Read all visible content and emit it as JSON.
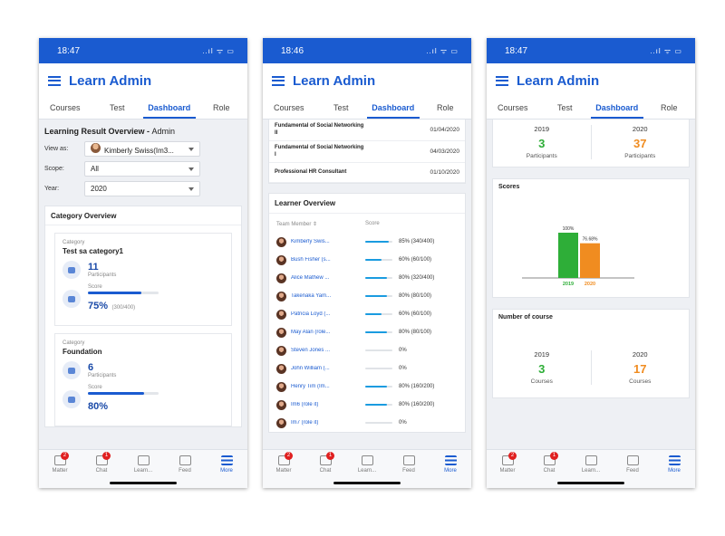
{
  "status": {
    "signal": "..ıl ᯤ ▭"
  },
  "app": {
    "title": "Learn Admin"
  },
  "tabs": [
    "Courses",
    "Test",
    "Dashboard",
    "Role"
  ],
  "nav": [
    {
      "label": "Matter",
      "badge": "2",
      "icon": "matter-icon"
    },
    {
      "label": "Chat",
      "badge": "1",
      "icon": "chat-icon"
    },
    {
      "label": "Learn...",
      "badge": "",
      "icon": "learn-icon"
    },
    {
      "label": "Feed",
      "badge": "",
      "icon": "feed-icon"
    },
    {
      "label": "More",
      "badge": "",
      "icon": "more-icon"
    }
  ],
  "phone1": {
    "time": "18:47",
    "title_bold": "Learning Result Overview - ",
    "title_rest": "Admin",
    "filters": {
      "view_label": "View as:",
      "view_value": "Kimberly Swiss(Im3...",
      "scope_label": "Scope:",
      "scope_value": "All",
      "year_label": "Year:",
      "year_value": "2020"
    },
    "category_overview": "Category Overview",
    "categories": [
      {
        "label": "Category",
        "name": "Test sa category1",
        "participants": "11",
        "participants_label": "Participants",
        "score_label": "Score",
        "score_pct": "75%",
        "score_detail": "(300/400)",
        "score_fraction": 0.75
      },
      {
        "label": "Category",
        "name": "Foundation",
        "participants": "6",
        "participants_label": "Participants",
        "score_label": "Score",
        "score_pct": "80%",
        "score_detail": "",
        "score_fraction": 0.8
      }
    ]
  },
  "phone2": {
    "time": "18:46",
    "courses": [
      {
        "name": "Fundamental of Social Networking II",
        "date": "01/04/2020"
      },
      {
        "name": "Fundamental of Social Networking I",
        "date": "04/03/2020"
      },
      {
        "name": "Professional HR Consultant",
        "date": "01/10/2020"
      }
    ],
    "learner_title": "Learner Overview",
    "col_member": "Team Member ⇕",
    "col_score": "Score",
    "learners": [
      {
        "name": "Kimberly Swis...",
        "score": "85% (340/400)",
        "fraction": 0.85
      },
      {
        "name": "Bush Fisher (s...",
        "score": "60% (60/100)",
        "fraction": 0.6
      },
      {
        "name": "Alice Mathew ...",
        "score": "80% (320/400)",
        "fraction": 0.8
      },
      {
        "name": "Takenaka Yam...",
        "score": "80% (80/100)",
        "fraction": 0.8
      },
      {
        "name": "Patricia Loyd (...",
        "score": "60% (60/100)",
        "fraction": 0.6
      },
      {
        "name": "May Alan (role...",
        "score": "80% (80/100)",
        "fraction": 0.8
      },
      {
        "name": "Steven Jones ...",
        "score": "0%",
        "fraction": 0
      },
      {
        "name": "John William (...",
        "score": "0%",
        "fraction": 0
      },
      {
        "name": "Henry Tim (Im...",
        "score": "80% (160/200)",
        "fraction": 0.8
      },
      {
        "name": "Im6 (role it)",
        "score": "80% (160/200)",
        "fraction": 0.8
      },
      {
        "name": "Im7 (role it)",
        "score": "0%",
        "fraction": 0
      }
    ]
  },
  "phone3": {
    "time": "18:47",
    "participants": [
      {
        "year": "2019",
        "value": "3",
        "label": "Participants",
        "color": "#2eae38"
      },
      {
        "year": "2020",
        "value": "37",
        "label": "Participants",
        "color": "#f08c20"
      }
    ],
    "scores_title": "Scores",
    "courses_title": "Number of course",
    "courses": [
      {
        "year": "2019",
        "value": "3",
        "label": "Courses"
      },
      {
        "year": "2020",
        "value": "17",
        "label": "Courses"
      }
    ]
  },
  "chart_data": {
    "type": "bar",
    "title": "Scores",
    "categories": [
      "2019",
      "2020"
    ],
    "values": [
      100,
      76.68
    ],
    "data_labels": [
      "100%",
      "76.68%"
    ],
    "colors": [
      "#2eae38",
      "#f08c20"
    ],
    "ylim": [
      0,
      100
    ]
  }
}
